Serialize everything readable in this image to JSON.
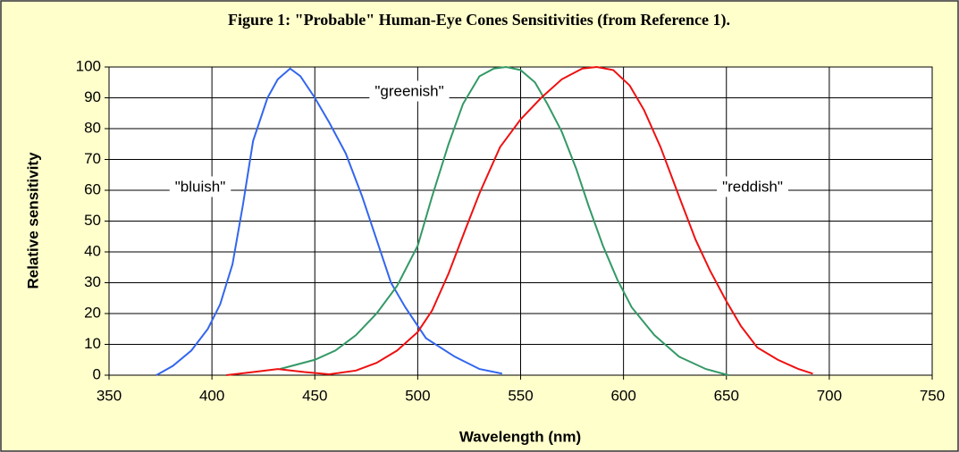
{
  "chart_data": {
    "type": "line",
    "title": "Figure 1: \"Probable\" Human-Eye Cones Sensitivities (from Reference 1).",
    "x_label": "Wavelength (nm)",
    "y_label": "Relative sensitivity",
    "xlim": [
      350,
      750
    ],
    "xticks": [
      350,
      400,
      450,
      500,
      550,
      600,
      650,
      700,
      750
    ],
    "ylim": [
      0,
      100
    ],
    "yticks": [
      0,
      10,
      20,
      30,
      40,
      50,
      60,
      70,
      80,
      90,
      100
    ],
    "grid": true,
    "annotations": [
      "\"bluish\"",
      "\"greenish\"",
      "\"reddish\""
    ],
    "series": [
      {
        "color": "#3366ee",
        "x": [
          373,
          381,
          390,
          398,
          404,
          410,
          415,
          420,
          427,
          432,
          438,
          443,
          450,
          457,
          465,
          473,
          480,
          487,
          494,
          504,
          518,
          530,
          541
        ],
        "values": [
          0,
          3,
          8,
          15,
          23,
          36,
          55,
          76,
          90,
          96,
          99.5,
          97,
          90,
          82,
          72,
          58,
          44,
          30,
          22,
          12,
          6,
          2,
          0.5
        ]
      },
      {
        "color": "#339966",
        "x": [
          433,
          450,
          460,
          470,
          480,
          490,
          500,
          507,
          515,
          522,
          530,
          537,
          543,
          550,
          557,
          563,
          570,
          577,
          583,
          590,
          597,
          604,
          615,
          627,
          640,
          651
        ],
        "values": [
          2,
          5,
          8,
          13,
          20,
          29,
          42,
          58,
          75,
          88,
          97,
          99.5,
          100,
          99,
          95,
          88,
          79,
          67,
          55,
          42,
          31,
          22,
          13,
          6,
          2,
          0
        ]
      },
      {
        "color": "#ee1111",
        "x": [
          407,
          420,
          432,
          445,
          457,
          470,
          480,
          490,
          500,
          507,
          515,
          523,
          530,
          540,
          550,
          560,
          570,
          580,
          587,
          595,
          603,
          610,
          618,
          627,
          635,
          642,
          650,
          657,
          665,
          675,
          685,
          692
        ],
        "values": [
          0,
          1,
          2,
          1,
          0.3,
          1.5,
          4,
          8,
          14,
          21,
          33,
          47,
          59,
          74,
          83,
          90,
          96,
          99.5,
          100,
          99,
          94,
          86,
          74,
          58,
          44,
          34,
          24,
          16,
          9,
          5,
          2,
          0.5
        ]
      }
    ]
  }
}
